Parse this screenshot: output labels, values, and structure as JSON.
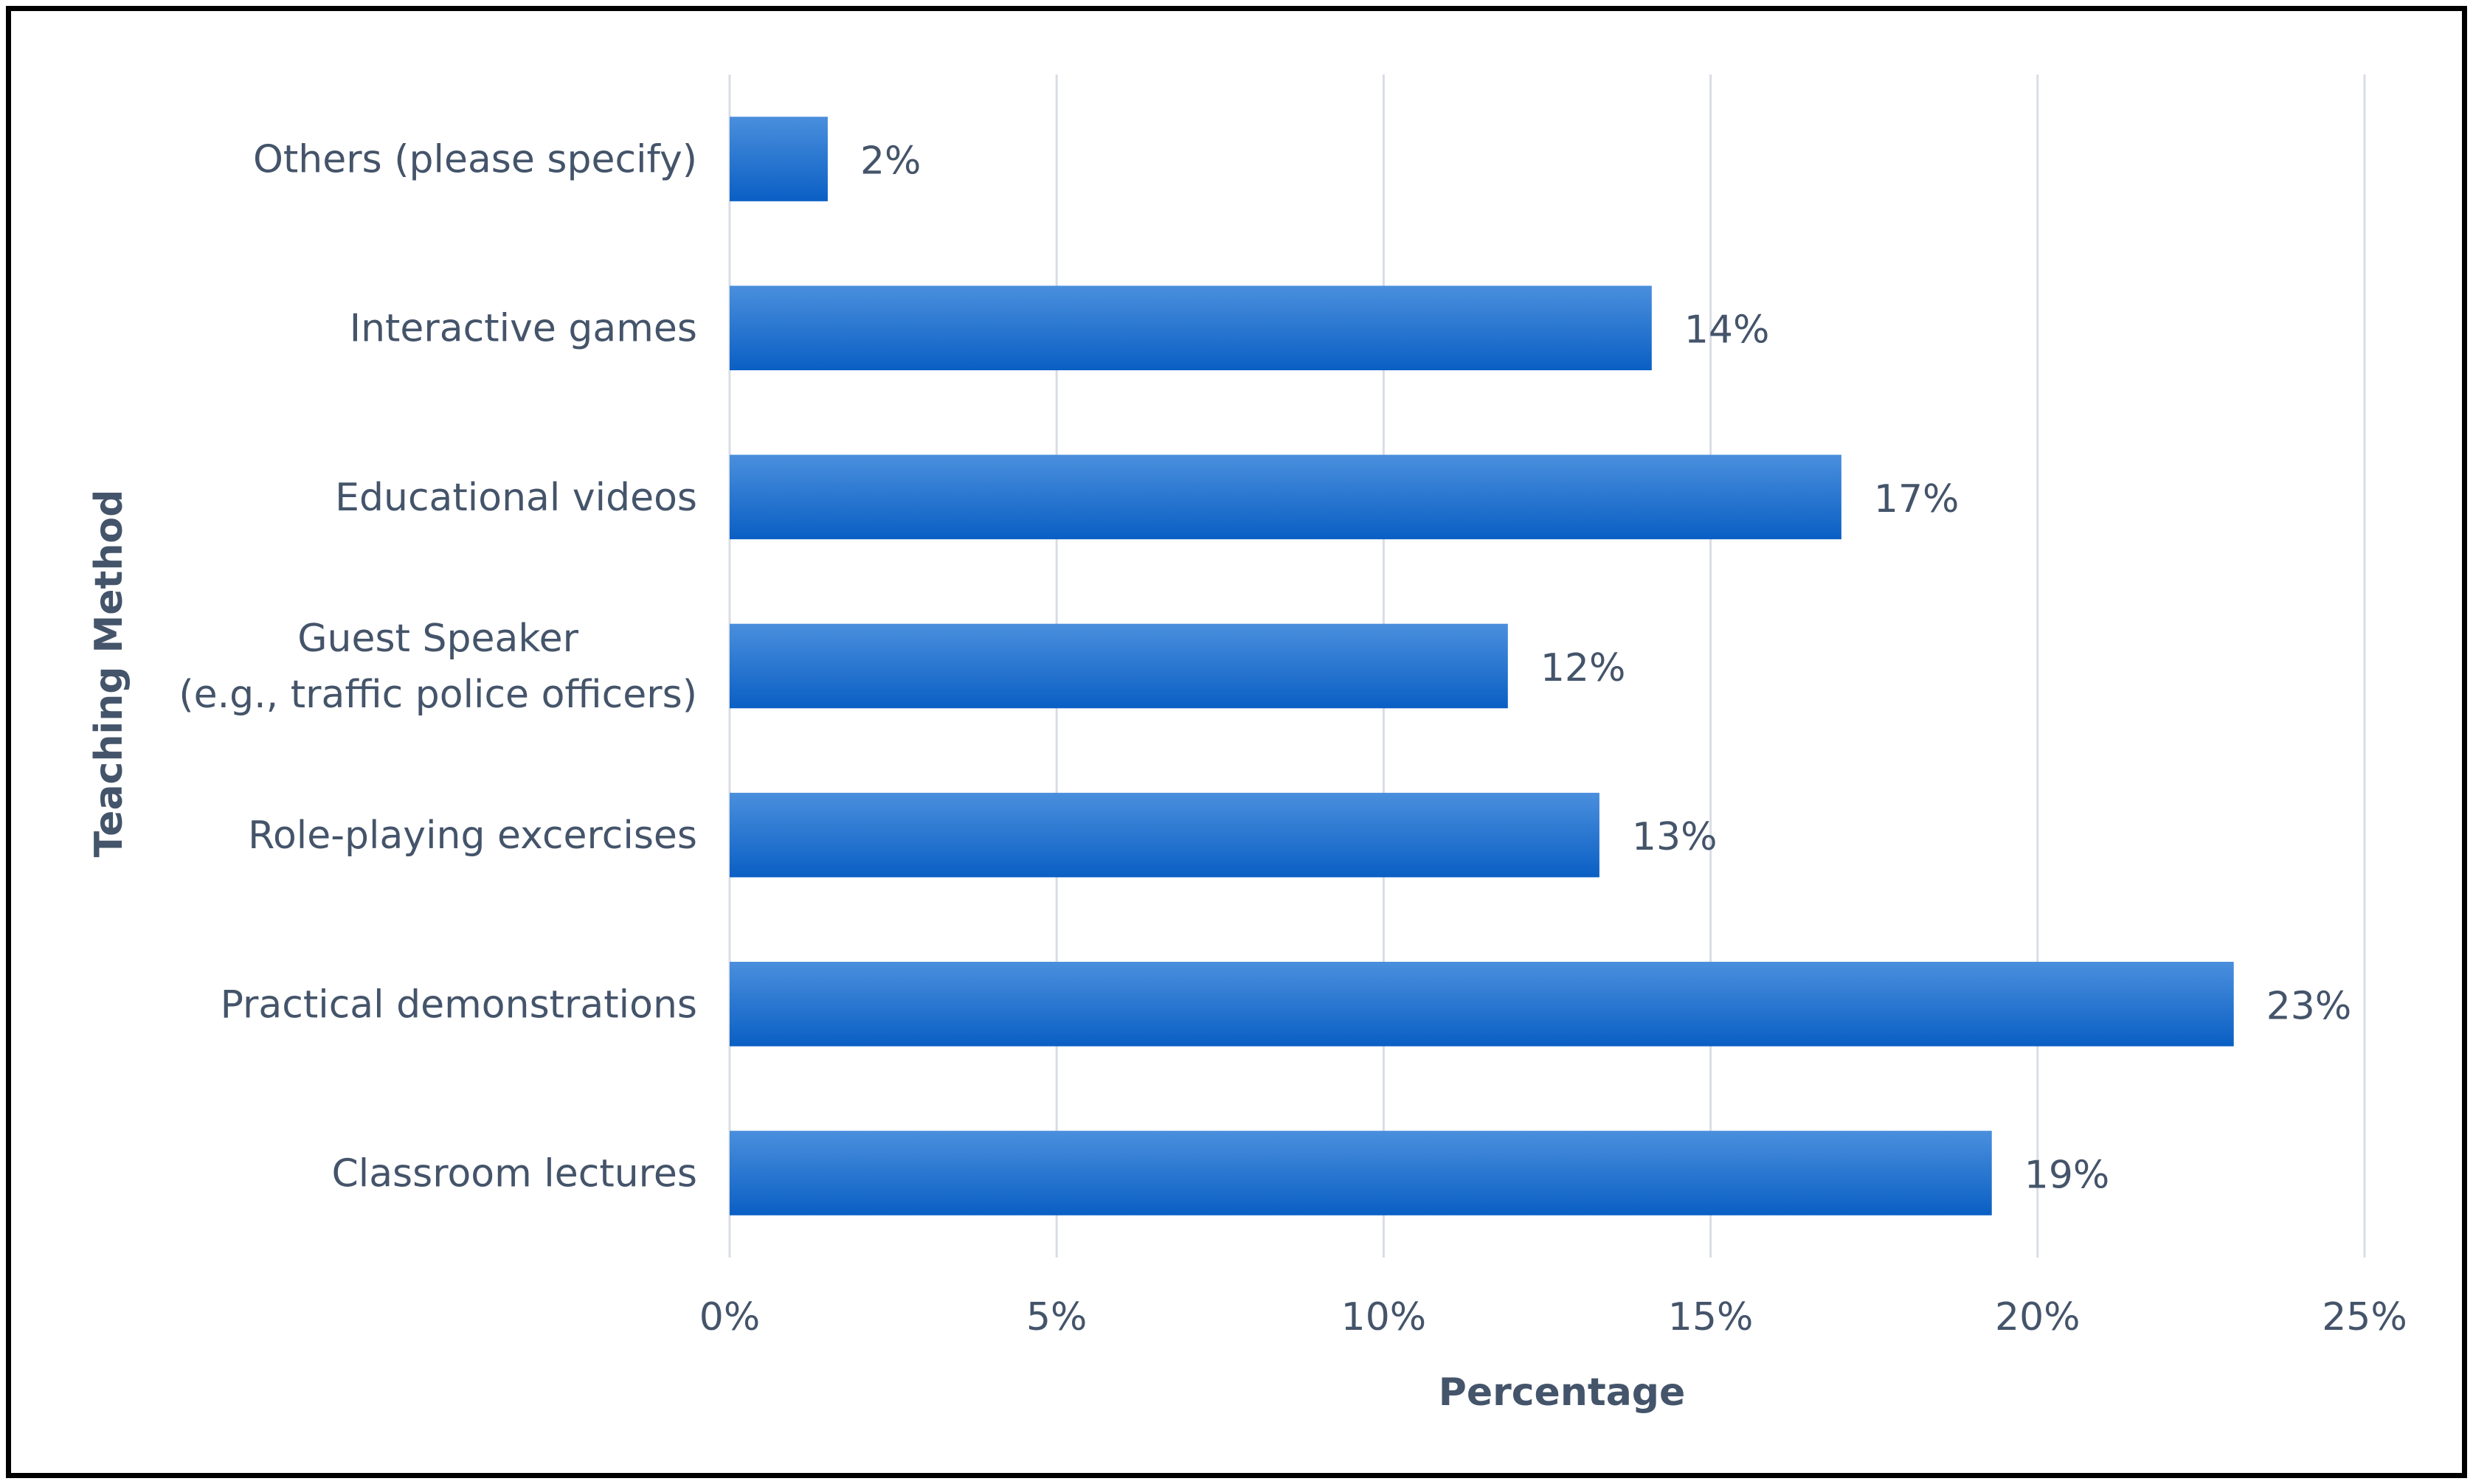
{
  "chart_data": {
    "type": "bar",
    "orientation": "horizontal",
    "title": "",
    "xlabel": "Percentage",
    "ylabel": "Teaching Method",
    "xlim": [
      0,
      25
    ],
    "x_ticks": [
      0,
      5,
      10,
      15,
      20,
      25
    ],
    "x_tick_labels": [
      "0%",
      "5%",
      "10%",
      "15%",
      "20%",
      "25%"
    ],
    "grid": true,
    "legend": "none",
    "categories": [
      [
        "Others (please specify)"
      ],
      [
        "Interactive games"
      ],
      [
        "Educational videos"
      ],
      [
        "Guest Speaker",
        "(e.g., traffic police officers)"
      ],
      [
        "Role-playing excercises"
      ],
      [
        "Practical demonstrations"
      ],
      [
        "Classroom lectures"
      ]
    ],
    "values": [
      1.5,
      14.1,
      17.0,
      11.9,
      13.3,
      23.0,
      19.3
    ],
    "value_labels": [
      "2%",
      "14%",
      "17%",
      "12%",
      "13%",
      "23%",
      "19%"
    ],
    "colors": {
      "bar_top": "#4a8fdd",
      "bar_bottom": "#0a5fc4",
      "gridline": "#d9dde5",
      "text": "#44546a",
      "frame": "#000000"
    }
  }
}
